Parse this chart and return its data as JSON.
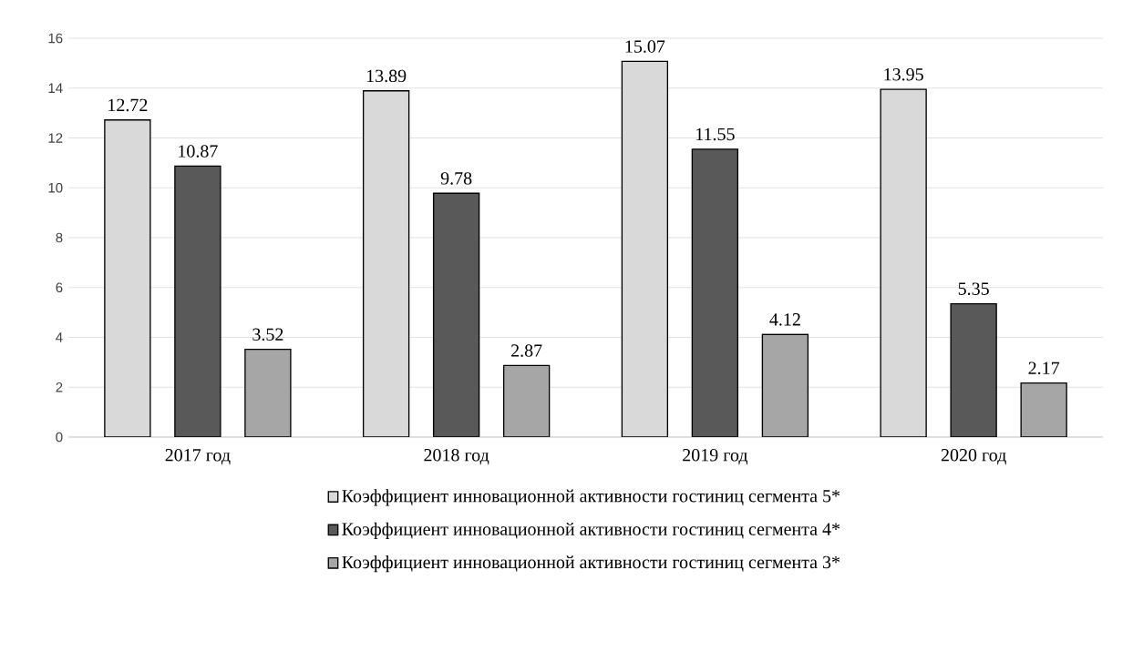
{
  "chart_data": {
    "type": "bar",
    "categories": [
      "2017 год",
      "2018 год",
      "2019 год",
      "2020 год"
    ],
    "series": [
      {
        "name": "Коэффициент инновационной активности гостиниц сегмента  5*",
        "color": "#d9d9d9",
        "values": [
          12.72,
          13.89,
          15.07,
          13.95
        ]
      },
      {
        "name": "Коэффициент инновационной активности гостиниц сегмента  4*",
        "color": "#595959",
        "values": [
          10.87,
          9.78,
          11.55,
          5.35
        ]
      },
      {
        "name": "Коэффициент инновационной активности гостиниц сегмента  3*",
        "color": "#a6a6a6",
        "values": [
          3.52,
          2.87,
          4.12,
          2.17
        ]
      }
    ],
    "ylim": [
      0,
      16
    ],
    "yticks": [
      0,
      2,
      4,
      6,
      8,
      10,
      12,
      14,
      16
    ],
    "grid": "y",
    "legend": "bottom",
    "data_labels": true
  }
}
